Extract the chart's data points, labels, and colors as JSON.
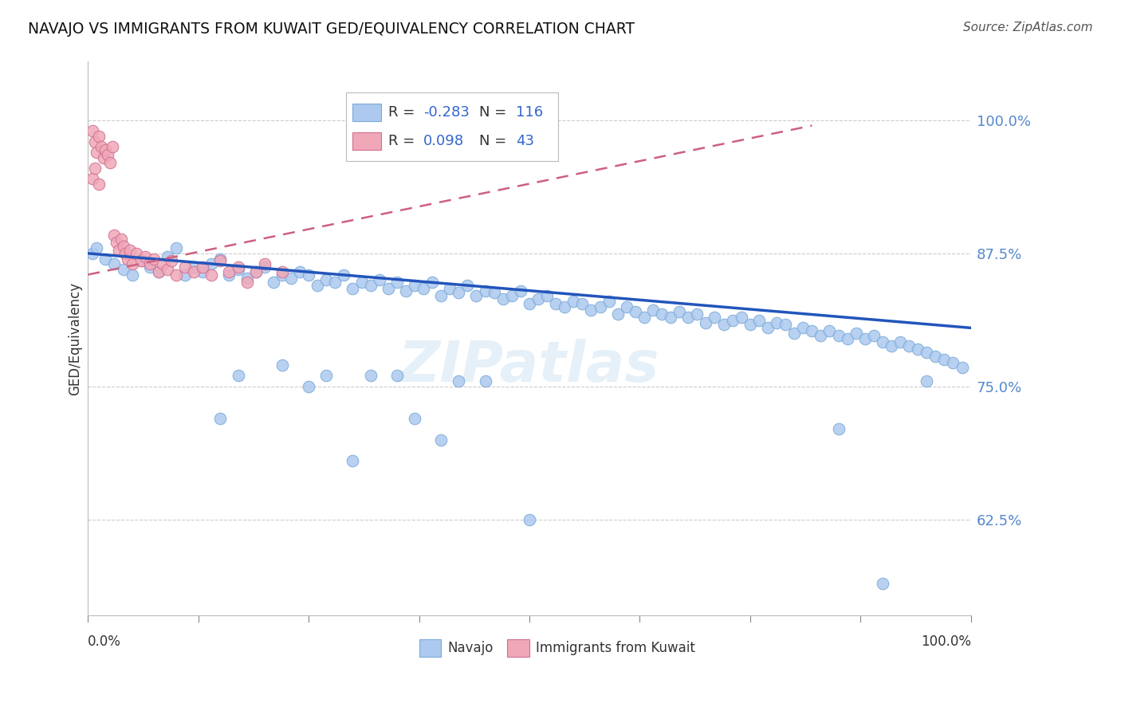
{
  "title": "NAVAJO VS IMMIGRANTS FROM KUWAIT GED/EQUIVALENCY CORRELATION CHART",
  "source": "Source: ZipAtlas.com",
  "ylabel": "GED/Equivalency",
  "ytick_labels": [
    "62.5%",
    "75.0%",
    "87.5%",
    "100.0%"
  ],
  "ytick_values": [
    0.625,
    0.75,
    0.875,
    1.0
  ],
  "xlim": [
    0.0,
    1.0
  ],
  "ylim": [
    0.535,
    1.055
  ],
  "legend_blue_r": "-0.283",
  "legend_blue_n": "116",
  "legend_pink_r": "0.098",
  "legend_pink_n": "43",
  "blue_color": "#adc9ef",
  "blue_edge_color": "#7aaad8",
  "blue_line_color": "#2255bb",
  "pink_color": "#f0a8b8",
  "pink_edge_color": "#d07090",
  "pink_line_color": "#cc6080",
  "watermark": "ZIPatlas",
  "navajo_x": [
    0.005,
    0.01,
    0.02,
    0.03,
    0.04,
    0.05,
    0.06,
    0.07,
    0.08,
    0.09,
    0.1,
    0.11,
    0.12,
    0.13,
    0.14,
    0.15,
    0.16,
    0.17,
    0.18,
    0.19,
    0.2,
    0.21,
    0.22,
    0.23,
    0.24,
    0.25,
    0.26,
    0.27,
    0.28,
    0.29,
    0.3,
    0.31,
    0.32,
    0.33,
    0.34,
    0.35,
    0.36,
    0.37,
    0.38,
    0.39,
    0.4,
    0.41,
    0.42,
    0.43,
    0.44,
    0.45,
    0.46,
    0.47,
    0.48,
    0.49,
    0.5,
    0.51,
    0.52,
    0.53,
    0.54,
    0.55,
    0.56,
    0.57,
    0.58,
    0.59,
    0.6,
    0.61,
    0.62,
    0.63,
    0.64,
    0.65,
    0.66,
    0.67,
    0.68,
    0.69,
    0.7,
    0.71,
    0.72,
    0.73,
    0.74,
    0.75,
    0.76,
    0.77,
    0.78,
    0.79,
    0.8,
    0.81,
    0.82,
    0.83,
    0.84,
    0.85,
    0.86,
    0.87,
    0.88,
    0.89,
    0.9,
    0.91,
    0.92,
    0.93,
    0.94,
    0.95,
    0.96,
    0.97,
    0.98,
    0.99,
    0.15,
    0.25,
    0.3,
    0.35,
    0.4,
    0.45,
    0.5,
    0.85,
    0.9,
    0.95,
    0.32,
    0.42,
    0.37,
    0.27,
    0.22,
    0.17
  ],
  "navajo_y": [
    0.875,
    0.88,
    0.87,
    0.865,
    0.86,
    0.855,
    0.868,
    0.862,
    0.858,
    0.872,
    0.88,
    0.855,
    0.862,
    0.858,
    0.865,
    0.87,
    0.855,
    0.86,
    0.852,
    0.858,
    0.862,
    0.848,
    0.855,
    0.852,
    0.858,
    0.855,
    0.845,
    0.85,
    0.848,
    0.855,
    0.842,
    0.848,
    0.845,
    0.85,
    0.842,
    0.848,
    0.84,
    0.845,
    0.842,
    0.848,
    0.835,
    0.842,
    0.838,
    0.845,
    0.835,
    0.84,
    0.838,
    0.832,
    0.835,
    0.84,
    0.828,
    0.832,
    0.835,
    0.828,
    0.825,
    0.83,
    0.828,
    0.822,
    0.825,
    0.83,
    0.818,
    0.825,
    0.82,
    0.815,
    0.822,
    0.818,
    0.815,
    0.82,
    0.815,
    0.818,
    0.81,
    0.815,
    0.808,
    0.812,
    0.815,
    0.808,
    0.812,
    0.805,
    0.81,
    0.808,
    0.8,
    0.805,
    0.802,
    0.798,
    0.802,
    0.798,
    0.795,
    0.8,
    0.795,
    0.798,
    0.792,
    0.788,
    0.792,
    0.788,
    0.785,
    0.782,
    0.778,
    0.775,
    0.772,
    0.768,
    0.72,
    0.75,
    0.68,
    0.76,
    0.7,
    0.755,
    0.625,
    0.71,
    0.565,
    0.755,
    0.76,
    0.755,
    0.72,
    0.76,
    0.77,
    0.76
  ],
  "kuwait_x": [
    0.005,
    0.008,
    0.01,
    0.012,
    0.015,
    0.018,
    0.02,
    0.022,
    0.025,
    0.028,
    0.03,
    0.032,
    0.035,
    0.038,
    0.04,
    0.042,
    0.045,
    0.048,
    0.05,
    0.055,
    0.06,
    0.065,
    0.07,
    0.075,
    0.08,
    0.085,
    0.09,
    0.095,
    0.1,
    0.11,
    0.12,
    0.13,
    0.14,
    0.15,
    0.16,
    0.17,
    0.18,
    0.19,
    0.2,
    0.22,
    0.005,
    0.008,
    0.012
  ],
  "kuwait_y": [
    0.99,
    0.98,
    0.97,
    0.985,
    0.975,
    0.965,
    0.972,
    0.968,
    0.96,
    0.975,
    0.892,
    0.885,
    0.878,
    0.888,
    0.882,
    0.875,
    0.87,
    0.878,
    0.865,
    0.875,
    0.868,
    0.872,
    0.865,
    0.87,
    0.858,
    0.865,
    0.86,
    0.868,
    0.855,
    0.862,
    0.858,
    0.862,
    0.855,
    0.868,
    0.858,
    0.862,
    0.848,
    0.858,
    0.865,
    0.858,
    0.945,
    0.955,
    0.94
  ],
  "blue_line_x0": 0.0,
  "blue_line_x1": 1.0,
  "blue_line_y0": 0.875,
  "blue_line_y1": 0.805,
  "pink_line_x0": 0.0,
  "pink_line_x1": 0.82,
  "pink_line_y0": 0.855,
  "pink_line_y1": 0.995
}
